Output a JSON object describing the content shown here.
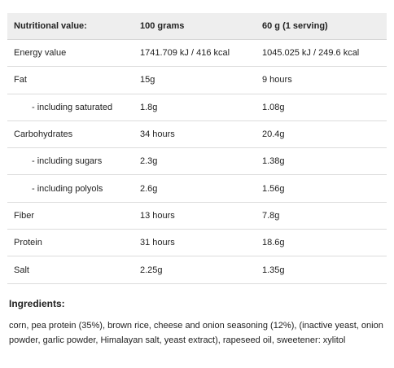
{
  "table": {
    "headers": [
      "Nutritional value:",
      "100 grams",
      "60 g (1 serving)"
    ],
    "rows": [
      {
        "label": "Energy value",
        "per100": "1741.709 kJ / 416 kcal",
        "serving": "1045.025 kJ / 249.6 kcal"
      },
      {
        "label": "Fat",
        "per100": "15g",
        "serving": "9 hours"
      },
      {
        "label": "- including saturated",
        "per100": "1.8g",
        "serving": "1.08g"
      },
      {
        "label": "Carbohydrates",
        "per100": "34 hours",
        "serving": "20.4g"
      },
      {
        "label": "- including sugars",
        "per100": "2.3g",
        "serving": "1.38g"
      },
      {
        "label": "- including polyols",
        "per100": "2.6g",
        "serving": "1.56g"
      },
      {
        "label": "Fiber",
        "per100": "13 hours",
        "serving": "7.8g"
      },
      {
        "label": "Protein",
        "per100": "31 hours",
        "serving": "18.6g"
      },
      {
        "label": "Salt",
        "per100": "2.25g",
        "serving": "1.35g"
      }
    ]
  },
  "ingredients": {
    "title": "Ingredients:",
    "text": "corn, pea protein (35%), brown rice, cheese and onion seasoning (12%), (inactive yeast, onion powder, garlic powder, Himalayan salt, yeast extract), rapeseed oil, sweetener: xylitol"
  }
}
